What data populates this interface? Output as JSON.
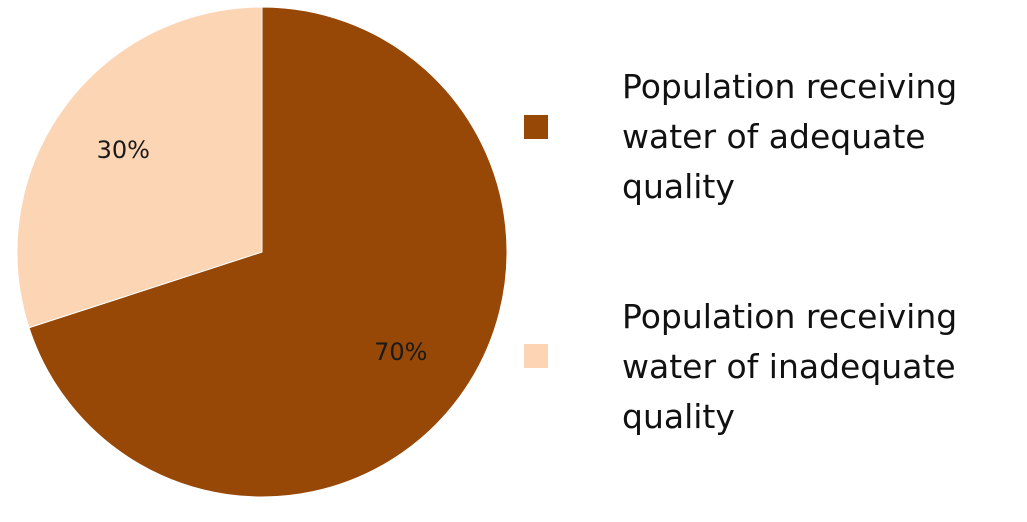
{
  "chart_data": {
    "type": "pie",
    "slices": [
      {
        "label": "Population receiving water of adequate quality",
        "value": 70,
        "display": "70%",
        "color": "#974706"
      },
      {
        "label": "Population receiving water of inadequate quality",
        "value": 30,
        "display": "30%",
        "color": "#fcd5b5"
      }
    ],
    "start_angle_deg": 0,
    "direction": "clockwise",
    "legend": {
      "position": "right",
      "entries": [
        {
          "label": "Population receiving water of adequate quality",
          "color": "#974706"
        },
        {
          "label": "Population receiving water of inadequate quality",
          "color": "#fcd5b5"
        }
      ]
    }
  }
}
